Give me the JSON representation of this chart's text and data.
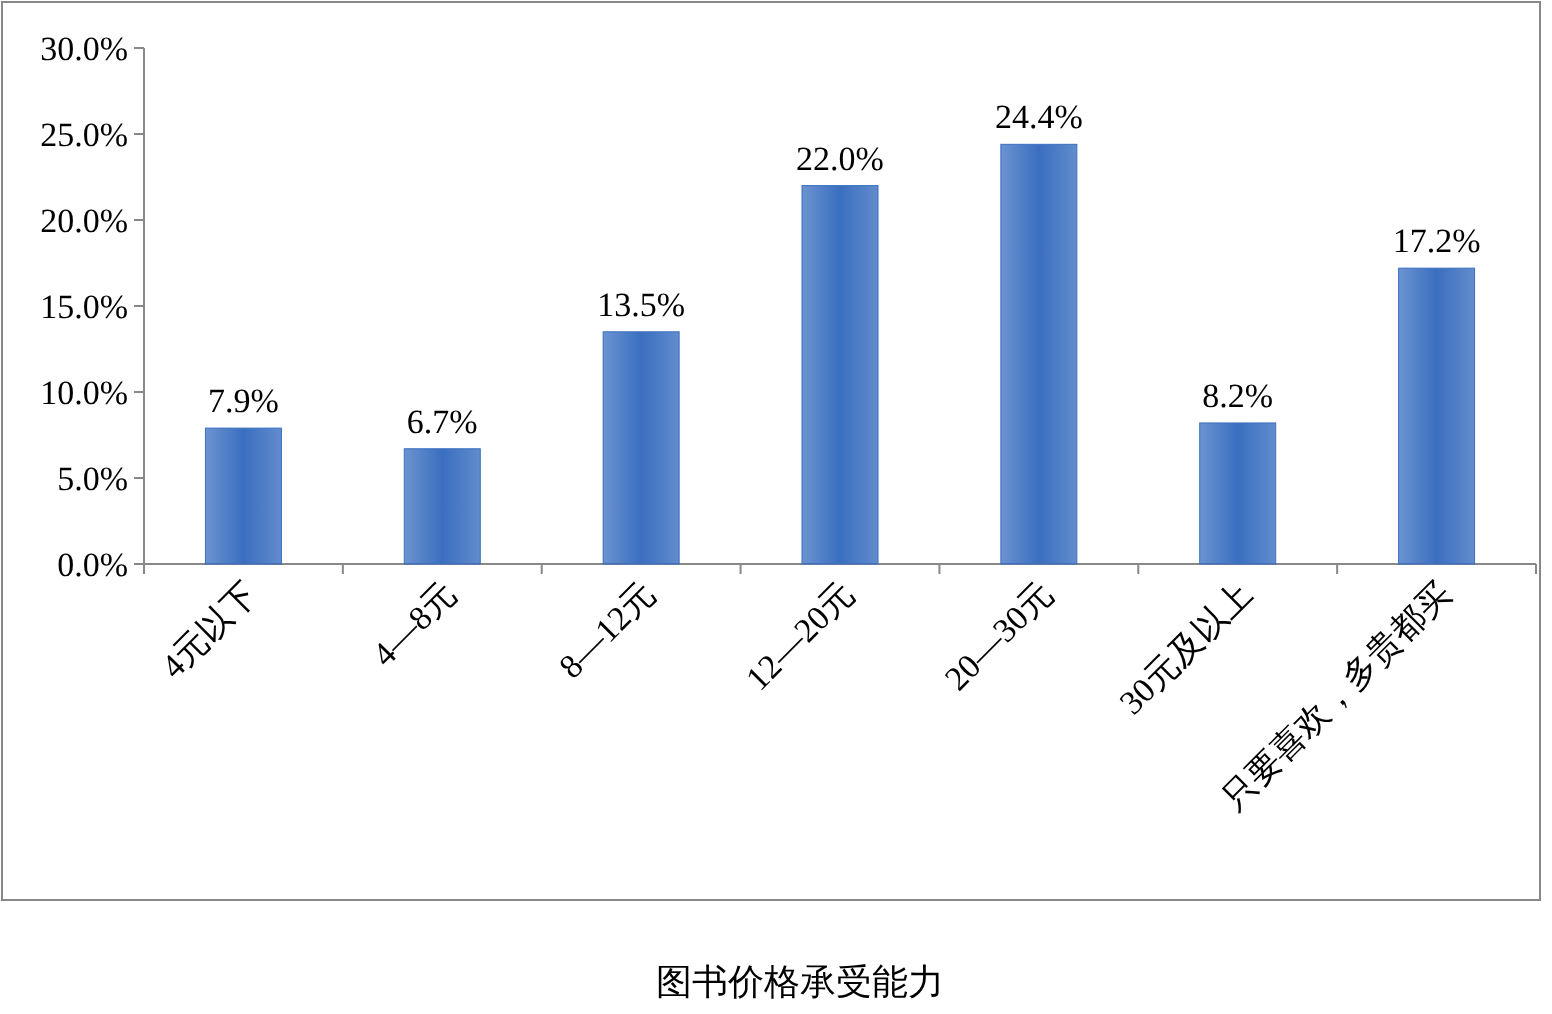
{
  "chart_data": {
    "type": "bar",
    "title": "图书价格承受能力",
    "categories": [
      "4元以下",
      "4—8元",
      "8—12元",
      "12—20元",
      "20—30元",
      "30元及以上",
      "只要喜欢，多贵都买"
    ],
    "values": [
      7.9,
      6.7,
      13.5,
      22.0,
      24.4,
      8.2,
      17.2
    ],
    "value_labels": [
      "7.9%",
      "6.7%",
      "13.5%",
      "22.0%",
      "24.4%",
      "8.2%",
      "17.2%"
    ],
    "color": "#3a6fc0",
    "ylim": [
      0,
      30
    ],
    "yticks": [
      {
        "value": 0,
        "label": "0.0%"
      },
      {
        "value": 5,
        "label": "5.0%"
      },
      {
        "value": 10,
        "label": "10.0%"
      },
      {
        "value": 15,
        "label": "15.0%"
      },
      {
        "value": 20,
        "label": "20.0%"
      },
      {
        "value": 25,
        "label": "25.0%"
      },
      {
        "value": 30,
        "label": "30.0%"
      }
    ],
    "grid": false
  }
}
